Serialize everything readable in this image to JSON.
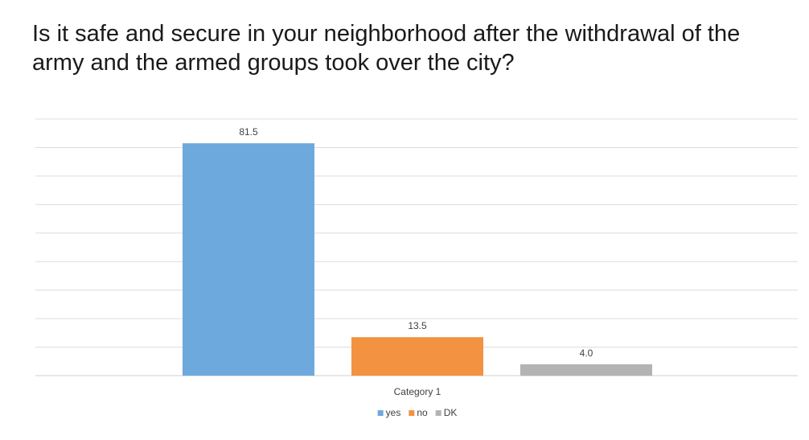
{
  "title": "Is it safe and secure in your neighborhood after the withdrawal of the army and the armed groups took over the city?",
  "chart_data": {
    "type": "bar",
    "categories": [
      "Category 1"
    ],
    "series": [
      {
        "name": "yes",
        "values": [
          81.5
        ],
        "color": "#6DA9DC",
        "label": "81.5"
      },
      {
        "name": "no",
        "values": [
          13.5
        ],
        "color": "#F39240",
        "label": "13.5"
      },
      {
        "name": "DK",
        "values": [
          4.0
        ],
        "color": "#B3B3B3",
        "label": "4.0"
      }
    ],
    "ylim": [
      0,
      90
    ],
    "gridlines": true,
    "y_tick_labels_visible": false,
    "legend_position": "bottom",
    "gridline_color": "#DCDCDC"
  }
}
